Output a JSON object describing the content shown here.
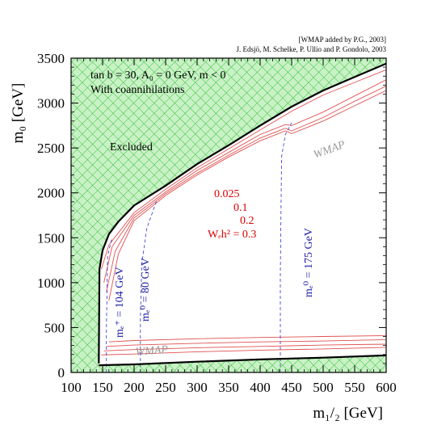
{
  "chart_data": {
    "type": "line",
    "credit_line1": "[WMAP added by P.G., 2003]",
    "credit_line2": "J. Edsjö, M. Schelke, P. Ullio and P. Gondolo, 2003",
    "params_text": "tan b = 30, A₀ = 0 GeV, m < 0",
    "coann_text": "With coannihilations",
    "excluded_text": "Excluded",
    "wmap_label": "WMAP",
    "xlabel": "m₁/₂ [GeV]",
    "ylabel": "m₀ [GeV]",
    "xlim": [
      100,
      600
    ],
    "ylim": [
      0,
      3500
    ],
    "x_ticks": [
      "100",
      "150",
      "200",
      "250",
      "300",
      "350",
      "400",
      "450",
      "500",
      "550",
      "600"
    ],
    "y_ticks": [
      "0",
      "500",
      "1000",
      "1500",
      "2000",
      "2500",
      "3000",
      "3500"
    ],
    "contour_labels": [
      "0.025",
      "0.1",
      "0.2",
      "Wₑh² = 0.3"
    ],
    "mass_labels": [
      "mₑ⁺ = 104 GeV",
      "mₑ⁰ = 80 GeV",
      "mₑ⁰ = 175 GeV"
    ],
    "colors": {
      "excluded_fill": "#c8f2c6",
      "hatch": "#3cbf3c",
      "boundary": "#000000",
      "relic": "#e05050",
      "mass_contour": "#3333cc",
      "relic_text": "#dd0000",
      "mass_text": "#1a1aa8",
      "wmap_text": "#999999"
    },
    "upper_boundary": {
      "x": [
        144,
        145,
        150,
        160,
        175,
        200,
        250,
        300,
        350,
        400,
        450,
        500,
        550,
        600
      ],
      "y": [
        100,
        1150,
        1360,
        1540,
        1680,
        1860,
        2080,
        2320,
        2530,
        2750,
        2960,
        3140,
        3290,
        3440
      ]
    },
    "lower_boundary": {
      "x": [
        144,
        200,
        300,
        400,
        500,
        600
      ],
      "y": [
        80,
        90,
        120,
        145,
        165,
        190
      ]
    },
    "relic_contours": [
      {
        "name": "0.025",
        "upper": {
          "x": [
            148,
            160,
            200,
            250,
            300,
            350,
            400,
            450,
            500,
            550,
            600
          ],
          "y": [
            1150,
            1420,
            1780,
            2040,
            2280,
            2490,
            2700,
            2910,
            3090,
            3230,
            3370
          ]
        },
        "lower": {
          "x": [
            148,
            200,
            300,
            400,
            500,
            600
          ],
          "y": [
            195,
            205,
            230,
            248,
            262,
            280
          ]
        }
      },
      {
        "name": "0.1",
        "upper": {
          "x": [
            152,
            165,
            200,
            250,
            300,
            350,
            400,
            440,
            450,
            500,
            550,
            600
          ],
          "y": [
            1000,
            1400,
            1750,
            2010,
            2250,
            2450,
            2650,
            2760,
            2750,
            2900,
            3080,
            3260
          ]
        },
        "lower": {
          "x": [
            152,
            200,
            300,
            400,
            500,
            600
          ],
          "y": [
            240,
            255,
            275,
            290,
            305,
            315
          ]
        }
      },
      {
        "name": "0.2",
        "upper": {
          "x": [
            156,
            170,
            200,
            250,
            300,
            350,
            400,
            440,
            450,
            500,
            550,
            600
          ],
          "y": [
            900,
            1350,
            1720,
            1990,
            2220,
            2420,
            2610,
            2720,
            2690,
            2840,
            3020,
            3190
          ]
        },
        "lower": {
          "x": [
            156,
            200,
            300,
            400,
            500,
            600
          ],
          "y": [
            290,
            305,
            325,
            340,
            350,
            365
          ]
        }
      },
      {
        "name": "0.3",
        "upper": {
          "x": [
            160,
            175,
            200,
            250,
            300,
            350,
            400,
            440,
            450,
            500,
            550,
            600
          ],
          "y": [
            800,
            1320,
            1690,
            1970,
            2200,
            2400,
            2580,
            2690,
            2660,
            2800,
            2970,
            3140
          ]
        },
        "lower": {
          "x": [
            160,
            200,
            300,
            400,
            500,
            600
          ],
          "y": [
            340,
            355,
            375,
            390,
            400,
            410
          ]
        }
      }
    ],
    "mass_contours": [
      {
        "name": "chargino 104 GeV",
        "x": [
          156,
          156,
          158,
          165
        ],
        "y": [
          0,
          500,
          1300,
          1500
        ]
      },
      {
        "name": "neutralino 80 GeV",
        "x": [
          210,
          210,
          212,
          220,
          235
        ],
        "y": [
          0,
          600,
          1200,
          1600,
          1900
        ]
      },
      {
        "name": "neutralino 175 GeV",
        "x": [
          432,
          432,
          434,
          440,
          450
        ],
        "y": [
          0,
          1100,
          2400,
          2650,
          2780
        ]
      }
    ]
  }
}
